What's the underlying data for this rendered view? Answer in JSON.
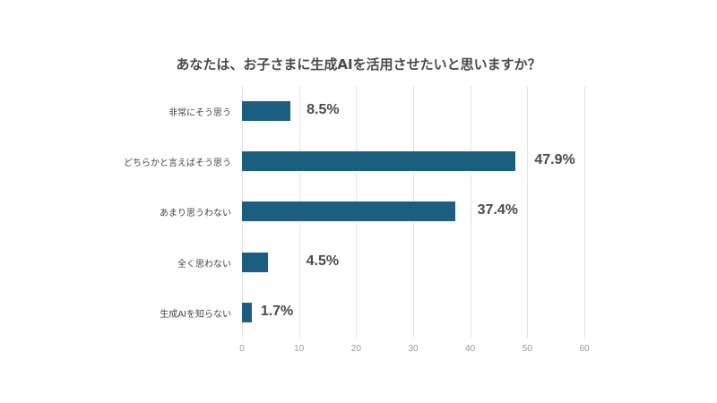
{
  "chart_data": {
    "type": "bar",
    "orientation": "horizontal",
    "title": "あなたは、お子さまに生成AIを活用させたいと思いますか？",
    "categories": [
      "非常にそう思う",
      "どちらかと言えばそう思う",
      "あまり思うわない",
      "全く思わない",
      "生成AIを知らない"
    ],
    "values": [
      8.5,
      47.9,
      37.4,
      4.5,
      1.7
    ],
    "labels": [
      "8.5%",
      "47.9%",
      "37.4%",
      "4.5%",
      "1.7%"
    ],
    "xlabel": "",
    "ylabel": "",
    "xlim": [
      0,
      60
    ],
    "xticks": [
      "0",
      "10",
      "20",
      "30",
      "40",
      "50",
      "60"
    ],
    "grid": true,
    "legend": null,
    "bar_color": "#1b5e80"
  }
}
